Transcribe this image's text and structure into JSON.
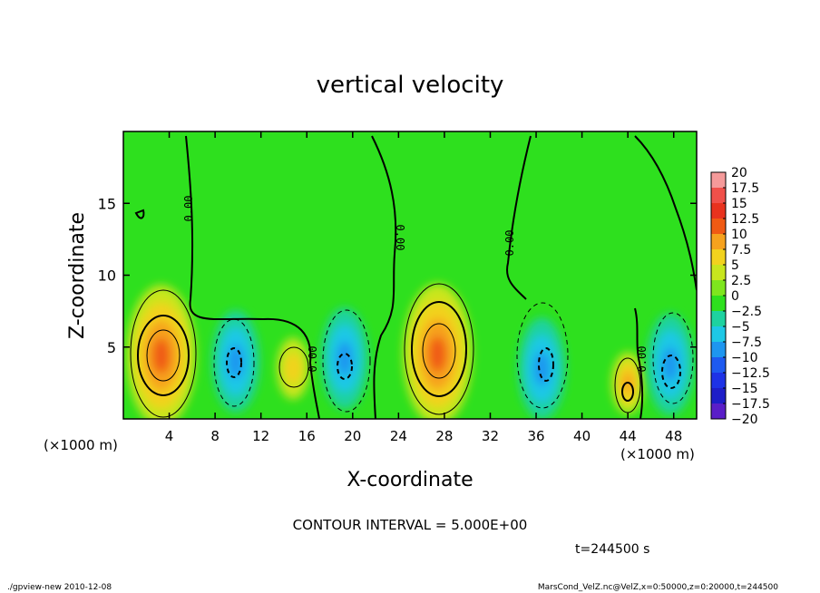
{
  "chart_data": {
    "type": "heatmap",
    "title": "vertical velocity",
    "xlabel": "X-coordinate",
    "ylabel": "Z-coordinate",
    "x_unit_left": "(×1000 m)",
    "x_unit_right": "(×1000 m)",
    "xlim": [
      0,
      50
    ],
    "ylim": [
      0,
      20
    ],
    "x_ticks": [
      4,
      8,
      12,
      16,
      20,
      24,
      28,
      32,
      36,
      40,
      44,
      48
    ],
    "y_ticks": [
      5,
      10,
      15
    ],
    "contour_interval_text": "CONTOUR INTERVAL = 5.000E+00",
    "time_text": "t=244500 s",
    "contour_labels": [
      "0.00",
      "0.00",
      "0.00",
      "0.00",
      "0.00",
      "0.00"
    ],
    "colorbar": {
      "levels": [
        "20",
        "17.5",
        "15",
        "12.5",
        "10",
        "7.5",
        "5",
        "2.5",
        "0",
        "−2.5",
        "−5",
        "−7.5",
        "−10",
        "−12.5",
        "−15",
        "−17.5",
        "−20"
      ],
      "colors": [
        "#f59a9a",
        "#f0504a",
        "#e8321e",
        "#f05a14",
        "#f6a21e",
        "#f2d21e",
        "#c8e61e",
        "#7ee61e",
        "#2ee01e",
        "#1ed2a0",
        "#1ec8e6",
        "#1e96f0",
        "#1e5af0",
        "#1e32e6",
        "#1e1ec8",
        "#5a1ec8"
      ]
    },
    "features": [
      {
        "kind": "updraft",
        "x": 3.3,
        "z": 4.4,
        "peak": 15
      },
      {
        "kind": "downdraft",
        "x": 9.8,
        "z": 4.0,
        "peak": -10
      },
      {
        "kind": "updraft",
        "x": 14.8,
        "z": 3.5,
        "peak": 5
      },
      {
        "kind": "downdraft",
        "x": 19.3,
        "z": 4.2,
        "peak": -10
      },
      {
        "kind": "updraft",
        "x": 27.4,
        "z": 4.5,
        "peak": 15
      },
      {
        "kind": "downdraft",
        "x": 36.5,
        "z": 3.5,
        "peak": -10
      },
      {
        "kind": "updraft",
        "x": 44.0,
        "z": 2.5,
        "peak": 10
      },
      {
        "kind": "downdraft",
        "x": 47.7,
        "z": 3.8,
        "peak": -10
      }
    ]
  },
  "footer": {
    "left": "./gpview-new  2010-12-08",
    "right": "MarsCond_VelZ.nc@VelZ,x=0:50000,z=0:20000,t=244500"
  }
}
